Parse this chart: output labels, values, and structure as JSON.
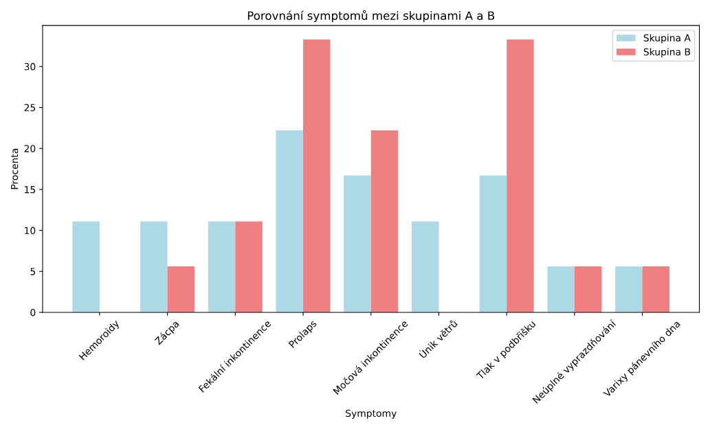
{
  "chart_data": {
    "type": "bar",
    "title": "Porovnání symptomů mezi skupinami A a B",
    "xlabel": "Symptomy",
    "ylabel": "Procenta",
    "categories": [
      "Hemoroidy",
      "Zácpa",
      "Fekální inkontinence",
      "Prolaps",
      "Močová inkontinence",
      "Únik větrů",
      "Tlak v podbřišku",
      "Neúplné vyprazdňování",
      "Varixy pánevního dna"
    ],
    "series": [
      {
        "name": "Skupina A",
        "color": "#add8e6",
        "values": [
          11.1,
          11.1,
          11.1,
          22.2,
          16.7,
          11.1,
          16.7,
          5.6,
          5.6
        ]
      },
      {
        "name": "Skupina B",
        "color": "#f08080",
        "values": [
          0,
          5.6,
          11.1,
          33.3,
          22.2,
          0,
          33.3,
          5.6,
          5.6
        ]
      }
    ],
    "ylim": [
      0,
      35
    ],
    "yticks": [
      0,
      5,
      10,
      15,
      20,
      25,
      30
    ],
    "grid": false,
    "legend": "top right"
  }
}
